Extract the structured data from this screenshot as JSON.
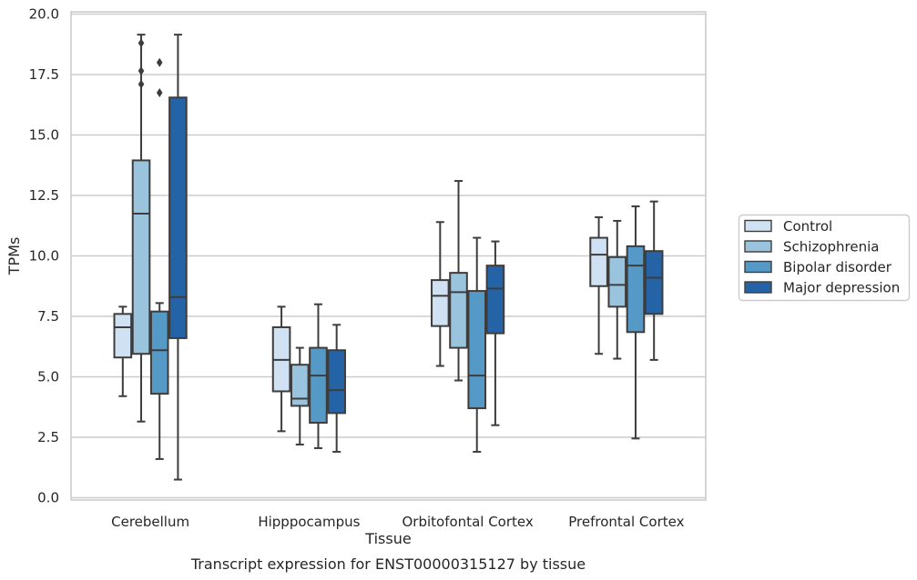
{
  "chart_data": {
    "type": "boxplot",
    "title": "",
    "xlabel": "Tissue",
    "ylabel": "TPMs",
    "caption": "Transcript expression for ENST00000315127 by tissue",
    "ylim": [
      0,
      20
    ],
    "yticks": [
      "0.0",
      "2.5",
      "5.0",
      "7.5",
      "10.0",
      "12.5",
      "15.0",
      "17.5",
      "20.0"
    ],
    "categories": [
      "Cerebellum",
      "Hipppocampus",
      "Orbitofontal Cortex",
      "Prefrontal Cortex"
    ],
    "grid": "horizontal",
    "legend_position": "right",
    "series": [
      {
        "name": "Control",
        "color": "#cfe1f2",
        "boxes": [
          {
            "whislo": 4.2,
            "q1": 5.8,
            "med": 7.05,
            "q3": 7.6,
            "whishi": 7.9,
            "fliers": []
          },
          {
            "whislo": 2.75,
            "q1": 4.4,
            "med": 5.7,
            "q3": 7.05,
            "whishi": 7.9,
            "fliers": []
          },
          {
            "whislo": 5.45,
            "q1": 7.1,
            "med": 8.35,
            "q3": 9.0,
            "whishi": 11.4,
            "fliers": []
          },
          {
            "whislo": 5.95,
            "q1": 8.75,
            "med": 10.05,
            "q3": 10.75,
            "whishi": 11.6,
            "fliers": []
          }
        ]
      },
      {
        "name": "Schizophrenia",
        "color": "#9ac3de",
        "boxes": [
          {
            "whislo": 3.15,
            "q1": 5.95,
            "med": 11.75,
            "q3": 13.95,
            "whishi": 19.15,
            "fliers": [
              18.8,
              17.65,
              17.1
            ]
          },
          {
            "whislo": 2.2,
            "q1": 3.8,
            "med": 4.1,
            "q3": 5.5,
            "whishi": 6.2,
            "fliers": []
          },
          {
            "whislo": 4.85,
            "q1": 6.2,
            "med": 8.5,
            "q3": 9.3,
            "whishi": 13.1,
            "fliers": []
          },
          {
            "whislo": 5.75,
            "q1": 7.9,
            "med": 8.8,
            "q3": 9.95,
            "whishi": 11.45,
            "fliers": []
          }
        ]
      },
      {
        "name": "Bipolar disorder",
        "color": "#5599c7",
        "boxes": [
          {
            "whislo": 1.6,
            "q1": 4.3,
            "med": 6.1,
            "q3": 7.7,
            "whishi": 8.05,
            "fliers": [
              18.0,
              16.75
            ]
          },
          {
            "whislo": 2.05,
            "q1": 3.1,
            "med": 5.05,
            "q3": 6.2,
            "whishi": 8.0,
            "fliers": []
          },
          {
            "whislo": 1.9,
            "q1": 3.7,
            "med": 5.05,
            "q3": 8.55,
            "whishi": 10.75,
            "fliers": []
          },
          {
            "whislo": 2.45,
            "q1": 6.85,
            "med": 9.6,
            "q3": 10.4,
            "whishi": 12.05,
            "fliers": []
          }
        ]
      },
      {
        "name": "Major depression",
        "color": "#2463a6",
        "boxes": [
          {
            "whislo": 0.75,
            "q1": 6.6,
            "med": 8.3,
            "q3": 16.55,
            "whishi": 19.15,
            "fliers": []
          },
          {
            "whislo": 1.9,
            "q1": 3.5,
            "med": 4.45,
            "q3": 6.1,
            "whishi": 7.15,
            "fliers": []
          },
          {
            "whislo": 3.0,
            "q1": 6.8,
            "med": 8.65,
            "q3": 9.6,
            "whishi": 10.6,
            "fliers": []
          },
          {
            "whislo": 5.7,
            "q1": 7.6,
            "med": 9.1,
            "q3": 10.2,
            "whishi": 12.25,
            "fliers": []
          }
        ]
      }
    ]
  }
}
